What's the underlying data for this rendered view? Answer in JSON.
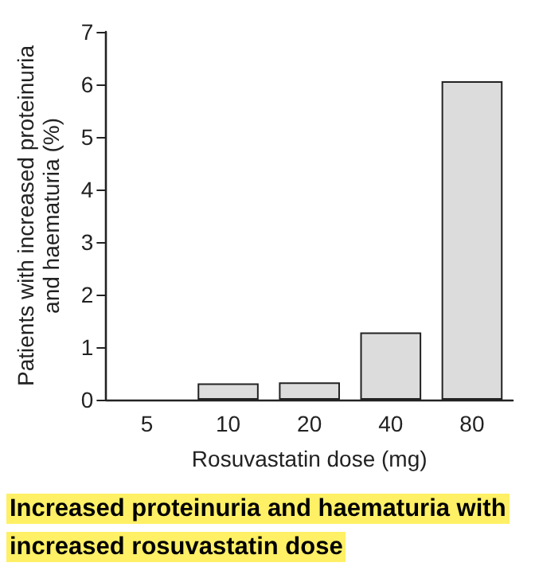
{
  "chart_data": {
    "type": "bar",
    "title": "Increased proteinuria and haematuria with increased rosuvastatin dose",
    "xlabel": "Rosuvastatin dose (mg)",
    "ylabel": "Patients with increased proteinuria and haematuria (%)",
    "categories": [
      "5",
      "10",
      "20",
      "40",
      "80"
    ],
    "values": [
      0,
      0.31,
      0.33,
      1.28,
      6.06
    ],
    "color": "#dcdcdc",
    "ylim": [
      0,
      7
    ],
    "yticks": [
      0,
      1,
      2,
      3,
      4,
      5,
      6,
      7
    ],
    "grid": false
  }
}
